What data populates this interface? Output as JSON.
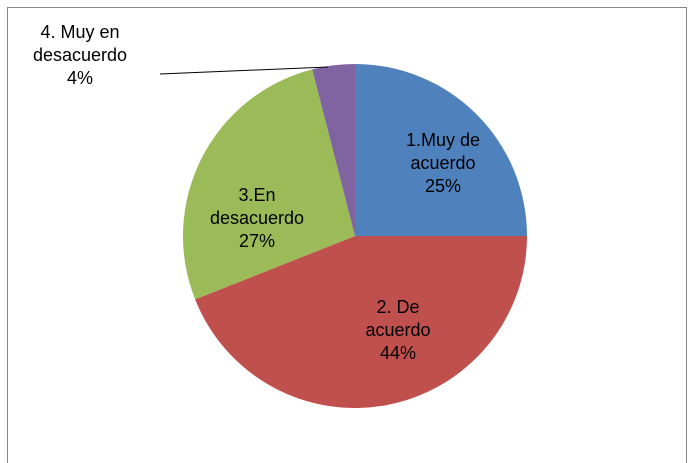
{
  "chart_data": {
    "type": "pie",
    "categories": [
      "1.Muy de acuerdo",
      "2. De acuerdo",
      "3.En desacuerdo",
      "4. Muy en desacuerdo"
    ],
    "values": [
      25,
      44,
      27,
      4
    ],
    "value_labels": [
      "25%",
      "44%",
      "27%",
      "4%"
    ],
    "colors": [
      "#4f81bd",
      "#c0504d",
      "#9bbb59",
      "#8064a2"
    ]
  }
}
